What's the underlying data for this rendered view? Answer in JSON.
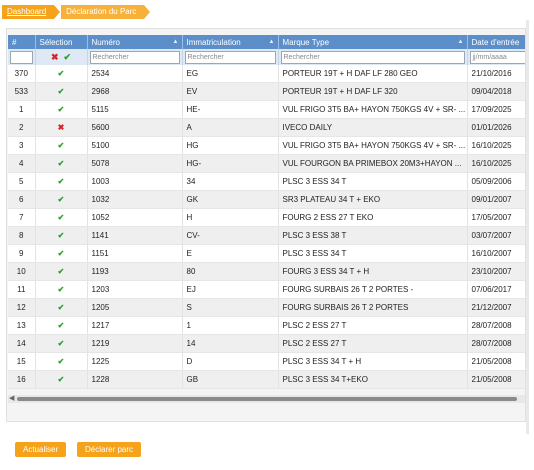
{
  "breadcrumb": {
    "items": [
      "Dashboard",
      "Déclaration du Parc"
    ]
  },
  "table": {
    "headers": [
      "#",
      "Sélection",
      "Numéro",
      "Immatriculation",
      "Marque Type",
      "Date d'entrée"
    ],
    "filters": {
      "numero_placeholder": "Rechercher",
      "immat_placeholder": "Rechercher",
      "type_placeholder": "Rechercher",
      "date_placeholder": "jj/mm/aaaa"
    },
    "rows": [
      {
        "n": "370",
        "sel": "check",
        "numero": "2534",
        "immat": "EG",
        "type": "PORTEUR 19T + H DAF LF 280 GEO",
        "date": "21/10/2016"
      },
      {
        "n": "533",
        "sel": "check",
        "numero": "2968",
        "immat": "EV",
        "type": "PORTEUR 19T + H DAF LF 320",
        "date": "09/04/2018"
      },
      {
        "n": "1",
        "sel": "check",
        "numero": "5115",
        "immat": "HE-",
        "type": "VUL FRIGO 3T5 BA+ HAYON 750KGS 4V + SR- ...",
        "date": "17/09/2025"
      },
      {
        "n": "2",
        "sel": "cross",
        "numero": "5600",
        "immat": "A",
        "type": "IVECO DAILY",
        "date": "01/01/2026"
      },
      {
        "n": "3",
        "sel": "check",
        "numero": "5100",
        "immat": "HG",
        "type": "VUL FRIGO 3T5 BA+ HAYON 750KGS 4V + SR- ...",
        "date": "16/10/2025"
      },
      {
        "n": "4",
        "sel": "check",
        "numero": "5078",
        "immat": "HG-",
        "type": "VUL FOURGON BA PRIMEBOX 20M3+HAYON ...",
        "date": "16/10/2025"
      },
      {
        "n": "5",
        "sel": "check",
        "numero": "1003",
        "immat": "34",
        "type": "PLSC 3 ESS 34 T",
        "date": "05/09/2006"
      },
      {
        "n": "6",
        "sel": "check",
        "numero": "1032",
        "immat": "GK",
        "type": "SR3 PLATEAU 34 T + EKO",
        "date": "09/01/2007"
      },
      {
        "n": "7",
        "sel": "check",
        "numero": "1052",
        "immat": "H",
        "type": "FOURG 2 ESS 27 T EKO",
        "date": "17/05/2007"
      },
      {
        "n": "8",
        "sel": "check",
        "numero": "1141",
        "immat": "CV-",
        "type": "PLSC 3 ESS 38 T",
        "date": "03/07/2007"
      },
      {
        "n": "9",
        "sel": "check",
        "numero": "1151",
        "immat": "E",
        "type": "PLSC 3 ESS 34 T",
        "date": "16/10/2007"
      },
      {
        "n": "10",
        "sel": "check",
        "numero": "1193",
        "immat": "80",
        "type": "FOURG 3 ESS 34 T + H",
        "date": "23/10/2007"
      },
      {
        "n": "11",
        "sel": "check",
        "numero": "1203",
        "immat": "EJ",
        "type": "FOURG SURBAIS 26 T 2 PORTES -",
        "date": "07/06/2017"
      },
      {
        "n": "12",
        "sel": "check",
        "numero": "1205",
        "immat": "S",
        "type": "FOURG SURBAIS 26 T 2 PORTES",
        "date": "21/12/2007"
      },
      {
        "n": "13",
        "sel": "check",
        "numero": "1217",
        "immat": "1",
        "type": "PLSC 2 ESS 27 T",
        "date": "28/07/2008"
      },
      {
        "n": "14",
        "sel": "check",
        "numero": "1219",
        "immat": "14",
        "type": "PLSC 2 ESS 27 T",
        "date": "28/07/2008"
      },
      {
        "n": "15",
        "sel": "check",
        "numero": "1225",
        "immat": "D",
        "type": "PLSC 3 ESS 34 T + H",
        "date": "21/05/2008"
      },
      {
        "n": "16",
        "sel": "check",
        "numero": "1228",
        "immat": "GB",
        "type": "PLSC 3 ESS 34 T+EKO",
        "date": "21/05/2008"
      }
    ]
  },
  "buttons": {
    "refresh": "Actualiser",
    "declare": "Déclarer parc"
  },
  "icons": {
    "check": "check-icon",
    "cross": "cross-icon",
    "sort": "sort-arrow-icon"
  },
  "colors": {
    "accent": "#f5a31a",
    "header": "#5c8fc9",
    "check": "#2aa02a",
    "cross": "#d22222"
  }
}
